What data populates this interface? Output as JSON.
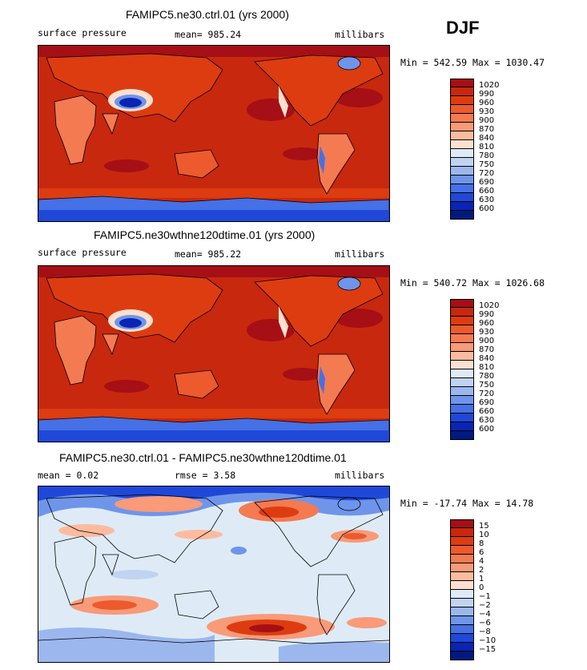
{
  "season": "DJF",
  "panels": [
    {
      "title": "FAMIPC5.ne30.ctrl.01 (yrs 2000)",
      "left_label": "surface pressure",
      "center_label": "mean= 985.24",
      "right_label": "millibars",
      "minmax": "Min = 542.59 Max = 1030.47"
    },
    {
      "title": "FAMIPC5.ne30wthne120dtime.01 (yrs 2000)",
      "left_label": "surface pressure",
      "center_label": "mean= 985.22",
      "right_label": "millibars",
      "minmax": "Min = 540.72 Max = 1026.68"
    },
    {
      "title": "FAMIPC5.ne30.ctrl.01 - FAMIPC5.ne30wthne120dtime.01",
      "left_label": "mean =    0.02",
      "center_label": "rmse =    3.58",
      "right_label": "millibars",
      "minmax": "Min = -17.74 Max =  14.78"
    }
  ],
  "legend_pressure": {
    "labels": [
      "1020",
      "990",
      "960",
      "930",
      "900",
      "870",
      "840",
      "810",
      "780",
      "750",
      "720",
      "690",
      "660",
      "630",
      "600"
    ],
    "colors": [
      "#a50f15",
      "#c8280e",
      "#dd3c11",
      "#ec5a2e",
      "#f47a52",
      "#f99a78",
      "#fcbb9f",
      "#fde0cf",
      "#deebf7",
      "#c0d3f1",
      "#9cb7ee",
      "#6f95ea",
      "#4570e6",
      "#2048d8",
      "#0a24b4",
      "#001a80"
    ]
  },
  "legend_diff": {
    "labels": [
      "15",
      "10",
      "8",
      "6",
      "4",
      "2",
      "1",
      "0",
      "−1",
      "−2",
      "−4",
      "−6",
      "−8",
      "−10",
      "−15"
    ],
    "colors": [
      "#a50f15",
      "#c8280e",
      "#dd3c11",
      "#ec5a2e",
      "#f47a52",
      "#f99a78",
      "#fcbb9f",
      "#fde0cf",
      "#deebf7",
      "#c0d3f1",
      "#9cb7ee",
      "#6f95ea",
      "#4570e6",
      "#2048d8",
      "#0a24b4",
      "#001a80"
    ]
  },
  "colors": {
    "ocean_pressure": "#c8280e",
    "land_high": "#dd3c11",
    "land_mid": "#f47a52",
    "land_low": "#fde0cf",
    "plateau": "#1f3fbf",
    "antarctic": "#4570e6",
    "diff_neutral": "#deebf7",
    "diff_pos": "#f99a78",
    "diff_neg": "#6f95ea"
  }
}
